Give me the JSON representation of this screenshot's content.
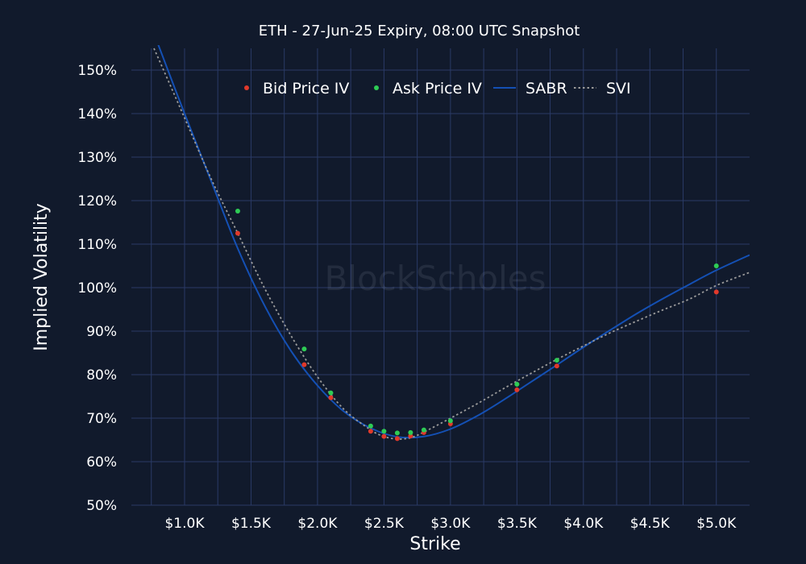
{
  "chart_data": {
    "type": "scatter",
    "title": "ETH - 27-Jun-25 Expiry, 08:00 UTC Snapshot",
    "xlabel": "Strike",
    "ylabel": "Implied Volatility",
    "watermark": "BlockScholes",
    "xlim": [
      600,
      5250
    ],
    "ylim": [
      50,
      155
    ],
    "x_ticks": [
      1000,
      1500,
      2000,
      2500,
      3000,
      3500,
      4000,
      4500,
      5000
    ],
    "x_tick_labels": [
      "$1.0K",
      "$1.5K",
      "$2.0K",
      "$2.5K",
      "$3.0K",
      "$3.5K",
      "$4.0K",
      "$4.5K",
      "$5.0K"
    ],
    "y_ticks": [
      50,
      60,
      70,
      80,
      90,
      100,
      110,
      120,
      130,
      140,
      150
    ],
    "y_tick_labels": [
      "50%",
      "60%",
      "70%",
      "80%",
      "90%",
      "100%",
      "110%",
      "120%",
      "130%",
      "140%",
      "150%"
    ],
    "grid": true,
    "legend_position": "top-center",
    "series": [
      {
        "name": "Bid Price IV",
        "kind": "markers",
        "color": "#e0392b",
        "points": [
          [
            1400,
            112.5
          ],
          [
            1900,
            82.3
          ],
          [
            2100,
            74.7
          ],
          [
            2400,
            67.0
          ],
          [
            2500,
            65.8
          ],
          [
            2600,
            65.3
          ],
          [
            2700,
            65.9
          ],
          [
            2800,
            66.7
          ],
          [
            3000,
            68.7
          ],
          [
            3500,
            76.5
          ],
          [
            3800,
            82.0
          ],
          [
            5000,
            99.0
          ]
        ]
      },
      {
        "name": "Ask Price IV",
        "kind": "markers",
        "color": "#2ecc55",
        "points": [
          [
            1400,
            117.6
          ],
          [
            1900,
            85.9
          ],
          [
            2100,
            75.8
          ],
          [
            2400,
            68.2
          ],
          [
            2500,
            67.0
          ],
          [
            2600,
            66.6
          ],
          [
            2700,
            66.7
          ],
          [
            2800,
            67.3
          ],
          [
            3000,
            69.4
          ],
          [
            3500,
            77.8
          ],
          [
            3800,
            83.3
          ],
          [
            5000,
            105.0
          ]
        ]
      },
      {
        "name": "SABR",
        "kind": "line",
        "color": "#1450b4",
        "points": [
          [
            800,
            156
          ],
          [
            1000,
            140
          ],
          [
            1200,
            124.5
          ],
          [
            1400,
            109
          ],
          [
            1600,
            96
          ],
          [
            1800,
            85.5
          ],
          [
            2000,
            77.5
          ],
          [
            2200,
            71.5
          ],
          [
            2400,
            67.7
          ],
          [
            2600,
            65.7
          ],
          [
            2800,
            65.8
          ],
          [
            3000,
            67.5
          ],
          [
            3200,
            70.5
          ],
          [
            3400,
            74.2
          ],
          [
            3600,
            78.2
          ],
          [
            3800,
            82.2
          ],
          [
            4000,
            86.3
          ],
          [
            4200,
            90.2
          ],
          [
            4400,
            94.0
          ],
          [
            4600,
            97.5
          ],
          [
            4800,
            100.8
          ],
          [
            5000,
            104.0
          ],
          [
            5250,
            107.5
          ]
        ]
      },
      {
        "name": "SVI",
        "kind": "dotted-line",
        "color": "#9a9a9a",
        "points": [
          [
            770,
            155
          ],
          [
            1000,
            139
          ],
          [
            1200,
            125
          ],
          [
            1400,
            112.5
          ],
          [
            1600,
            100
          ],
          [
            1800,
            89
          ],
          [
            2000,
            79.5
          ],
          [
            2200,
            72.0
          ],
          [
            2400,
            67.3
          ],
          [
            2500,
            65.8
          ],
          [
            2600,
            65.2
          ],
          [
            2700,
            65.5
          ],
          [
            2800,
            66.8
          ],
          [
            3000,
            70.0
          ],
          [
            3200,
            73.3
          ],
          [
            3400,
            76.8
          ],
          [
            3600,
            80.2
          ],
          [
            3800,
            83.5
          ],
          [
            4000,
            86.6
          ],
          [
            4200,
            89.6
          ],
          [
            4400,
            92.3
          ],
          [
            4600,
            94.9
          ],
          [
            4800,
            97.4
          ],
          [
            5000,
            100.5
          ],
          [
            5250,
            103.5
          ]
        ]
      }
    ]
  }
}
